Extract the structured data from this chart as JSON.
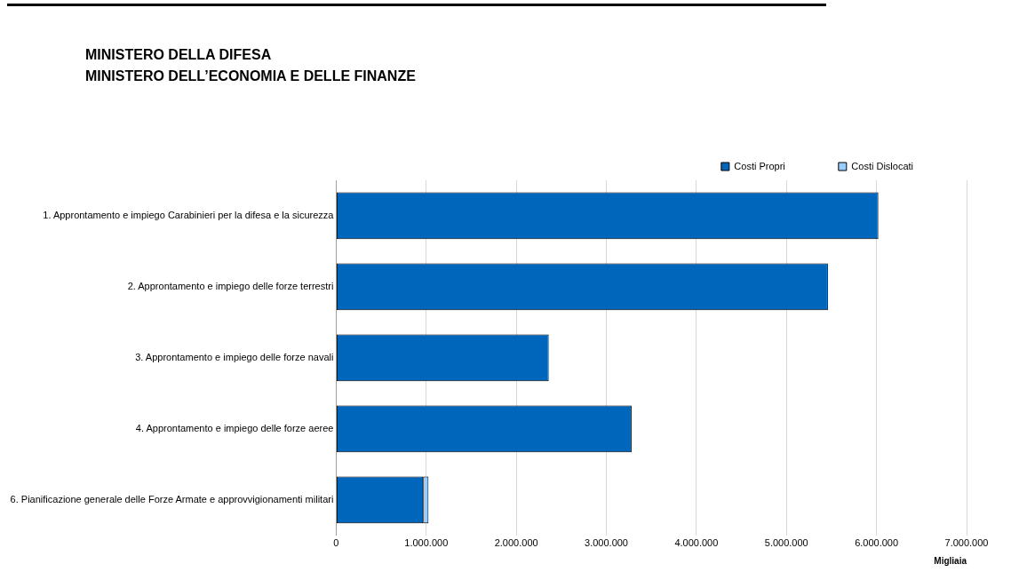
{
  "chart_data": {
    "type": "bar",
    "orientation": "horizontal",
    "stacked": true,
    "title": "MINISTERO DELLA DIFESA\nMINISTERO DELL’ECONOMIA E DELLE FINANZE",
    "xlabel": "Migliaia",
    "categories": [
      "1. Approntamento e impiego Carabinieri per la difesa e la sicurezza",
      "2. Approntamento e impiego delle forze terrestri",
      "3. Approntamento e impiego delle forze navali",
      "4. Approntamento e impiego delle forze aeree",
      "6. Pianificazione generale delle Forze Armate e approvvigionamenti militari"
    ],
    "series": [
      {
        "name": "Costi Propri",
        "color": "#0066bb",
        "values": [
          6020000,
          5460000,
          2360000,
          3280000,
          965000
        ]
      },
      {
        "name": "Costi Dislocati",
        "color": "#99ccff",
        "values": [
          0,
          0,
          0,
          0,
          60000
        ]
      }
    ],
    "xlim": [
      0,
      7000000
    ],
    "xticks": [
      0,
      {
        "value": 1000000,
        "label": "1.000.000"
      },
      {
        "value": 2000000,
        "label": "2.000.000"
      },
      {
        "value": 3000000,
        "label": "3.000.000"
      },
      {
        "value": 4000000,
        "label": "4.000.000"
      },
      {
        "value": 5000000,
        "label": "5.000.000"
      },
      {
        "value": 6000000,
        "label": "6.000.000"
      },
      {
        "value": 7000000,
        "label": "7.000.000"
      }
    ],
    "grid": "x",
    "legend": "top right"
  }
}
